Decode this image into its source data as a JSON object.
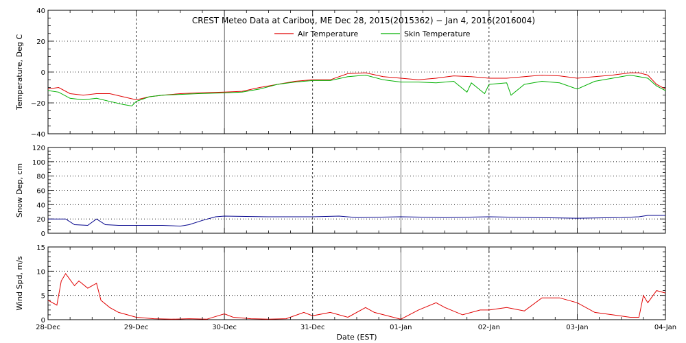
{
  "title": "CREST Meteo Data at Caribou, ME   Dec 28, 2015(2015362) − Jan  4, 2016(2016004)",
  "xlabel": "Date (EST)",
  "x_ticks": [
    "28-Dec",
    "29-Dec",
    "30-Dec",
    "31-Dec",
    "01-Jan",
    "02-Jan",
    "03-Jan",
    "04-Jan"
  ],
  "colors": {
    "air": "#e00000",
    "skin": "#00b000",
    "snow": "#00008b",
    "wind": "#e00000",
    "grid": "#000000"
  },
  "chart_data": [
    {
      "type": "line",
      "ylabel": "Temperature, Deg C",
      "ylim": [
        -40,
        40
      ],
      "y_ticks": [
        "40",
        "20",
        "0",
        "−20",
        "−40"
      ],
      "y_tick_values": [
        40,
        20,
        0,
        -20,
        -40
      ],
      "xlim": [
        0,
        7
      ],
      "grid": true,
      "legend": "top-center",
      "series": [
        {
          "name": "Air Temperature",
          "color": "#e00000",
          "x": [
            0,
            0.12,
            0.25,
            0.4,
            0.55,
            0.7,
            0.85,
            1.0,
            1.15,
            1.3,
            1.5,
            1.7,
            2.0,
            2.2,
            2.4,
            2.6,
            2.8,
            3.0,
            3.2,
            3.4,
            3.6,
            3.8,
            4.0,
            4.2,
            4.4,
            4.6,
            4.8,
            5.0,
            5.2,
            5.4,
            5.6,
            5.8,
            6.0,
            6.2,
            6.4,
            6.6,
            6.7,
            6.8,
            6.9,
            7.0
          ],
          "y": [
            -11,
            -10,
            -14,
            -15,
            -14,
            -14,
            -16,
            -18,
            -16,
            -15,
            -14,
            -13.5,
            -13,
            -12.5,
            -10,
            -8,
            -6,
            -5,
            -5,
            -1,
            -0.5,
            -3,
            -4,
            -5,
            -4,
            -2.5,
            -3,
            -4,
            -4,
            -3,
            -2,
            -2.5,
            -4,
            -3,
            -2,
            -0.5,
            -0.5,
            -2,
            -8,
            -11
          ]
        },
        {
          "name": "Skin Temperature",
          "color": "#00b000",
          "x": [
            0,
            0.12,
            0.25,
            0.4,
            0.55,
            0.7,
            0.85,
            0.95,
            1.0,
            1.15,
            1.3,
            1.5,
            1.7,
            2.0,
            2.2,
            2.4,
            2.6,
            2.8,
            3.0,
            3.2,
            3.4,
            3.6,
            3.8,
            4.0,
            4.2,
            4.4,
            4.6,
            4.75,
            4.8,
            4.95,
            5.0,
            5.2,
            5.25,
            5.4,
            5.6,
            5.8,
            6.0,
            6.2,
            6.4,
            6.6,
            6.7,
            6.8,
            6.9,
            7.0
          ],
          "y": [
            -12,
            -13,
            -17,
            -18,
            -17,
            -19,
            -21,
            -22,
            -19,
            -16,
            -15,
            -14.5,
            -14,
            -13.5,
            -13,
            -11,
            -8,
            -6.5,
            -5.5,
            -5.5,
            -3,
            -2,
            -5,
            -6.5,
            -6.5,
            -7,
            -6,
            -13,
            -7,
            -14,
            -8,
            -7,
            -15,
            -8,
            -6,
            -7,
            -11,
            -6,
            -4,
            -2,
            -3,
            -4,
            -9,
            -12
          ]
        }
      ]
    },
    {
      "type": "line",
      "ylabel": "Snow Dep, cm",
      "ylim": [
        0,
        120
      ],
      "y_ticks": [
        "120",
        "100",
        "80",
        "60",
        "40",
        "20",
        "0"
      ],
      "y_tick_values": [
        120,
        100,
        80,
        60,
        40,
        20,
        0
      ],
      "xlim": [
        0,
        7
      ],
      "grid": true,
      "series": [
        {
          "color": "#00008b",
          "x": [
            0,
            0.2,
            0.3,
            0.45,
            0.55,
            0.65,
            0.8,
            1.0,
            1.3,
            1.5,
            1.6,
            1.75,
            1.9,
            2.0,
            2.5,
            3.0,
            3.3,
            3.5,
            4.0,
            4.5,
            5.0,
            5.5,
            6.0,
            6.5,
            6.7,
            6.8,
            7.0
          ],
          "y": [
            20,
            20,
            12,
            11,
            20,
            12,
            11,
            11,
            11,
            10,
            12,
            18,
            23,
            24,
            23,
            23,
            24,
            22,
            23,
            22,
            23,
            22,
            21,
            22,
            23,
            25,
            25
          ]
        }
      ]
    },
    {
      "type": "line",
      "ylabel": "Wind Spd, m/s",
      "ylim": [
        0,
        15
      ],
      "y_ticks": [
        "15",
        "10",
        "5",
        "0"
      ],
      "y_tick_values": [
        15,
        10,
        5,
        0
      ],
      "xlim": [
        0,
        7
      ],
      "grid": true,
      "series": [
        {
          "color": "#e00000",
          "x": [
            0,
            0.1,
            0.15,
            0.2,
            0.3,
            0.35,
            0.45,
            0.55,
            0.6,
            0.7,
            0.8,
            0.9,
            1.0,
            1.2,
            1.4,
            1.6,
            1.8,
            2.0,
            2.1,
            2.3,
            2.5,
            2.7,
            2.9,
            3.0,
            3.2,
            3.4,
            3.6,
            3.7,
            4.0,
            4.2,
            4.4,
            4.5,
            4.7,
            4.9,
            5.0,
            5.2,
            5.4,
            5.6,
            5.8,
            6.0,
            6.2,
            6.4,
            6.6,
            6.7,
            6.75,
            6.8,
            6.9,
            7.0
          ],
          "y": [
            4,
            3,
            8,
            9.5,
            7,
            8,
            6.5,
            7.5,
            4,
            2.5,
            1.5,
            1,
            0.5,
            0.2,
            0.1,
            0.2,
            0.1,
            1.2,
            0.5,
            0.2,
            0.1,
            0.2,
            1.5,
            0.8,
            1.5,
            0.5,
            2.5,
            1.5,
            0.1,
            2,
            3.5,
            2.5,
            1,
            2,
            2,
            2.5,
            1.8,
            4.5,
            4.5,
            3.5,
            1.5,
            1,
            0.5,
            0.5,
            5,
            3.5,
            6,
            5.5
          ]
        }
      ]
    }
  ]
}
